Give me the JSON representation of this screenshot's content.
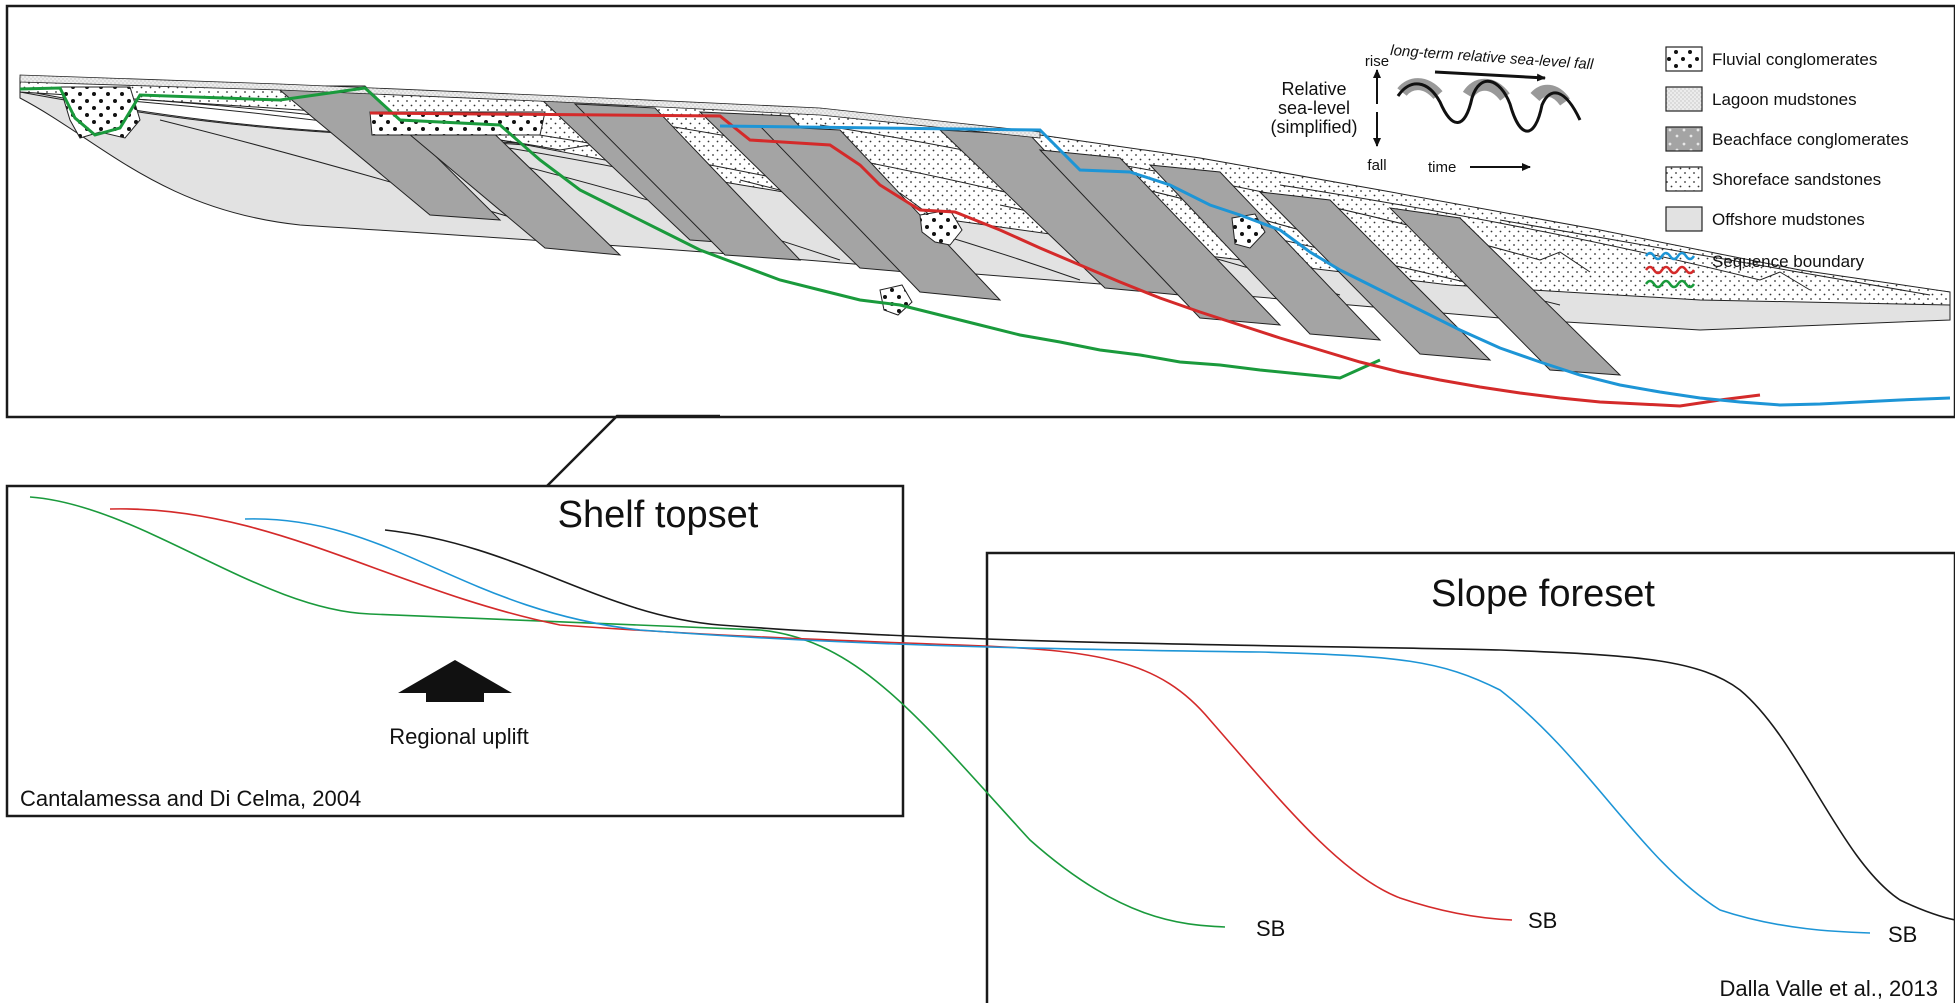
{
  "colors": {
    "green": "#1a9a3c",
    "red": "#d42a2a",
    "blue": "#1d95d6",
    "black": "#1a1a1a",
    "offshore": "#e2e2e2",
    "beachface": "#a4a4a4",
    "lagoon": "#ececec"
  },
  "inset": {
    "sea_level_label_1": "Relative",
    "sea_level_label_2": "sea-level",
    "sea_level_label_3": "(simplified)",
    "rise_label": "rise",
    "fall_label": "fall",
    "time_label": "time",
    "trend_label": "long-term relative sea-level fall"
  },
  "legend": [
    {
      "label": "Fluvial conglomerates",
      "pattern": "fluvial"
    },
    {
      "label": "Lagoon mudstones",
      "pattern": "lagoon"
    },
    {
      "label": "Beachface conglomerates",
      "pattern": "beachface"
    },
    {
      "label": "Shoreface sandstones",
      "pattern": "shoreface"
    },
    {
      "label": "Offshore mudstones",
      "pattern": "offshore"
    },
    {
      "label": "Sequence boundary",
      "pattern": "wavy"
    }
  ],
  "shelf": {
    "title": "Shelf topset",
    "uplift_label": "Regional uplift",
    "citation": "Cantalamessa and Di Celma, 2004"
  },
  "slope": {
    "title": "Slope foreset",
    "citation": "Dalla Valle et al., 2013"
  },
  "sb_labels": [
    "SB",
    "SB",
    "SB"
  ]
}
